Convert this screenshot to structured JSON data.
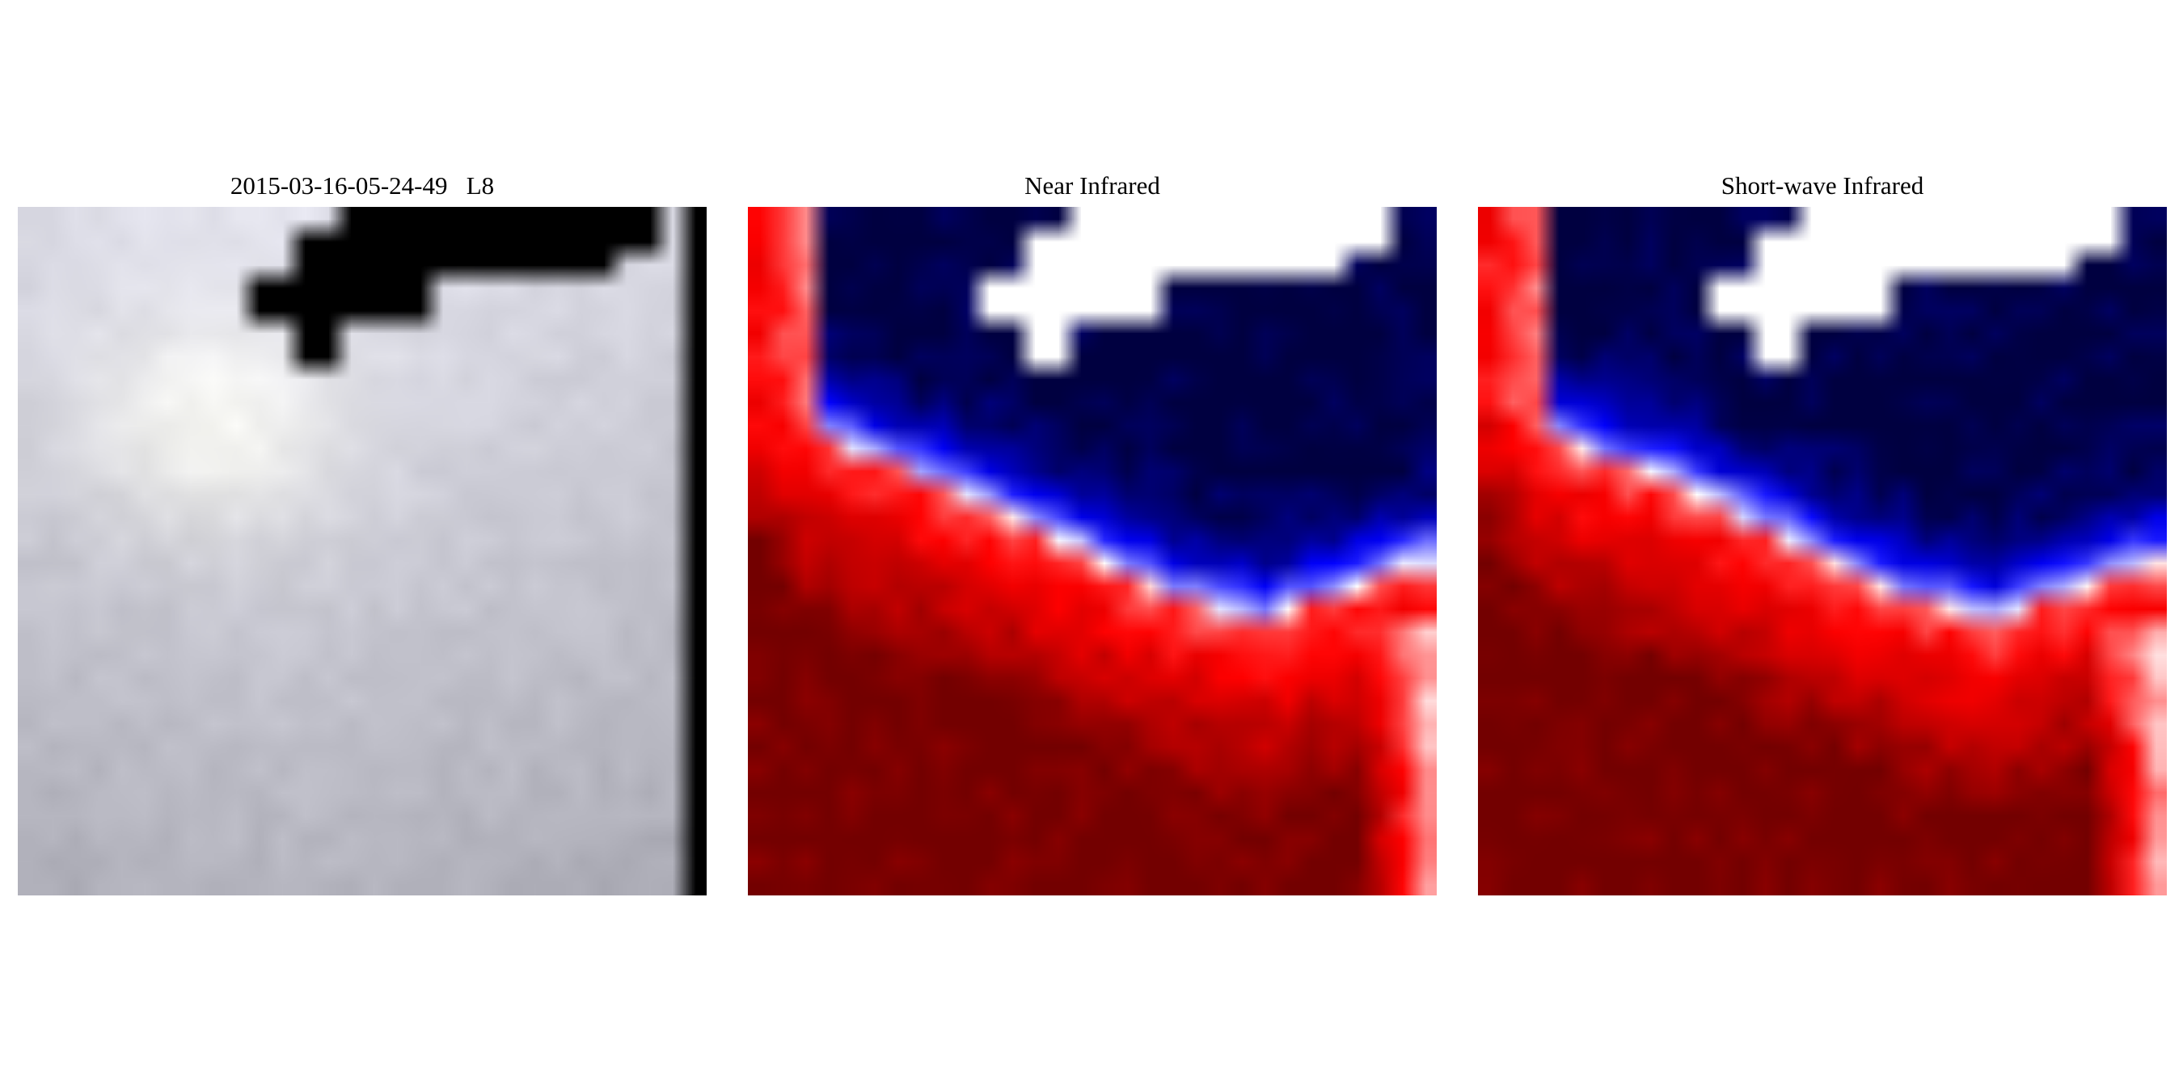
{
  "panels": [
    {
      "id": "rgb",
      "title": "2015-03-16-05-24-49   L8",
      "kind": "true-color satellite tile (overcast, with black no-data mask)"
    },
    {
      "id": "nir",
      "title": "Near Infrared",
      "kind": "diverging blue-white-red heatmap"
    },
    {
      "id": "swir",
      "title": "Short-wave Infrared",
      "kind": "diverging blue-white-red heatmap"
    }
  ],
  "colors": {
    "background": "#ffffff",
    "mask_rgb": "#000000",
    "mask_heatmap": "#ffffff",
    "cold": "#0000ff",
    "neutral": "#ffffff",
    "hot": "#ff0000"
  }
}
